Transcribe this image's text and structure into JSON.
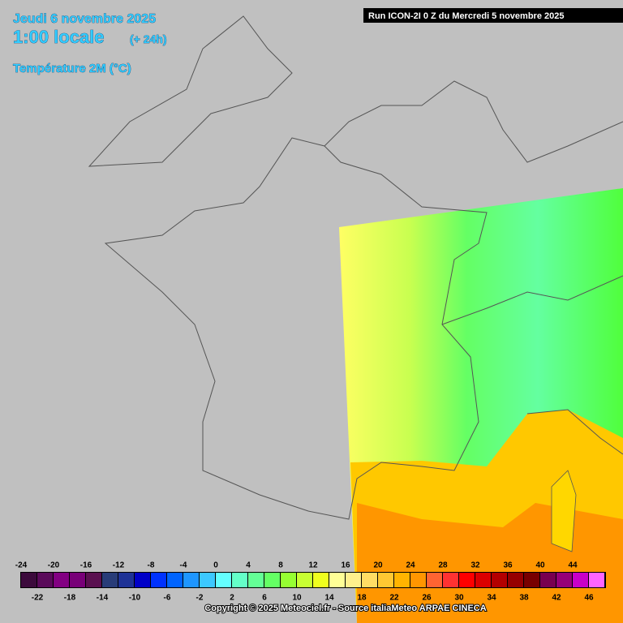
{
  "header": {
    "date": "Jeudi 6 novembre 2025",
    "time": "1:00 locale",
    "lead": "(+ 24h)",
    "variable": "Température 2M (°C)",
    "run": "Run ICON-2I 0 Z du Mercredi 5 novembre 2025"
  },
  "legend": {
    "ticks": [
      -24,
      -22,
      -20,
      -18,
      -16,
      -14,
      -12,
      -10,
      -8,
      -6,
      -4,
      -2,
      0,
      2,
      4,
      6,
      8,
      10,
      12,
      14,
      16,
      18,
      20,
      22,
      24,
      26,
      28,
      30,
      32,
      34,
      36,
      38,
      40,
      42,
      44,
      46
    ],
    "colors": [
      "#3c0a3c",
      "#5a0a5a",
      "#820082",
      "#780078",
      "#5a1050",
      "#283c78",
      "#1e3296",
      "#0000c8",
      "#0032ff",
      "#0064ff",
      "#1e96ff",
      "#3cc8ff",
      "#64ffff",
      "#64ffc8",
      "#64ff96",
      "#64ff64",
      "#96ff32",
      "#c8ff32",
      "#f0ff1e",
      "#ffff96",
      "#fff08c",
      "#ffdc64",
      "#ffc832",
      "#ffb400",
      "#ff9600",
      "#ff6432",
      "#ff3232",
      "#ff0000",
      "#dc0000",
      "#b40000",
      "#960000",
      "#780000",
      "#780050",
      "#960078",
      "#c800c8",
      "#ff64ff"
    ]
  },
  "footer": {
    "copyright": "Copyright © 2025 Meteociel.fr - Source italiaMeteo ARPAE CINECA"
  }
}
